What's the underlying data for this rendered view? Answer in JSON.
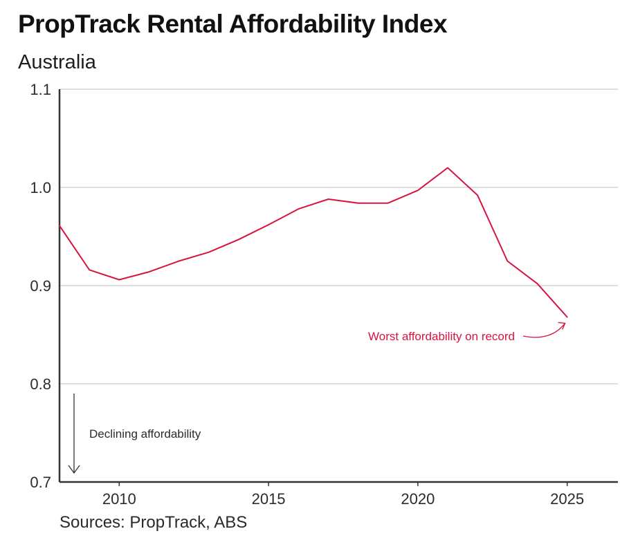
{
  "title": "PropTrack Rental Affordability Index",
  "subtitle": "Australia",
  "source": "Sources: PropTrack, ABS",
  "colors": {
    "line": "#d6143f",
    "axis": "#333333",
    "grid": "#cccccc",
    "annotation_red": "#d6143f"
  },
  "chart_data": {
    "type": "line",
    "title": "PropTrack Rental Affordability Index",
    "subtitle": "Australia",
    "xlabel": "",
    "ylabel": "",
    "xlim": [
      2008,
      2026.7
    ],
    "ylim": [
      0.7,
      1.1
    ],
    "x_ticks": [
      2010,
      2015,
      2020,
      2025
    ],
    "y_ticks": [
      0.7,
      0.8,
      0.9,
      1.0,
      1.1
    ],
    "y_tick_labels": [
      "0.7",
      "0.8",
      "0.9",
      "1.0",
      "1.1"
    ],
    "grid": true,
    "series": [
      {
        "name": "Rental Affordability Index",
        "x": [
          2008,
          2009,
          2010,
          2011,
          2012,
          2013,
          2014,
          2015,
          2016,
          2017,
          2018,
          2019,
          2020,
          2021,
          2022,
          2023,
          2024,
          2025
        ],
        "values": [
          0.961,
          0.916,
          0.906,
          0.914,
          0.925,
          0.934,
          0.947,
          0.962,
          0.978,
          0.988,
          0.984,
          0.984,
          0.997,
          1.02,
          0.992,
          0.925,
          0.902,
          0.868
        ]
      }
    ],
    "annotations": [
      {
        "text": "Worst affordability on record",
        "points_to_x": 2025,
        "points_to_y": 0.868
      },
      {
        "text": "Declining affordability",
        "arrow": "down"
      }
    ]
  }
}
